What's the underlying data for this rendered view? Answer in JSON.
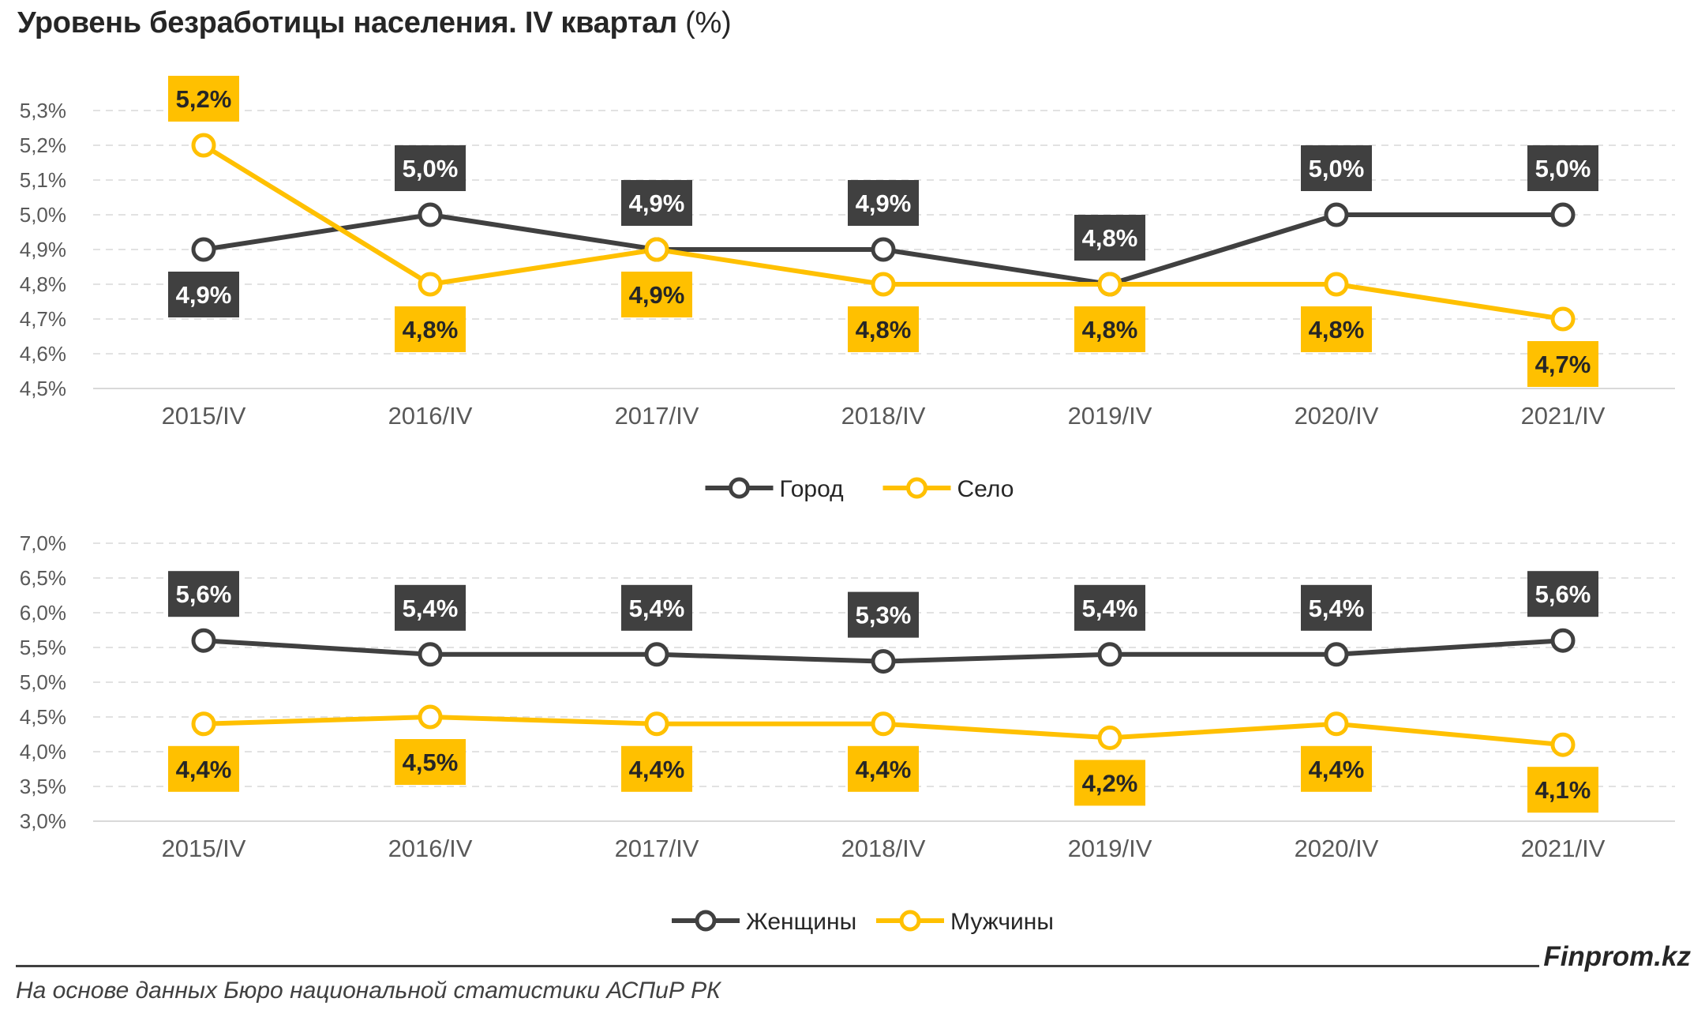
{
  "title": "Уровень безработицы населения. IV квартал",
  "title_unit": "(%)",
  "brand": "Finprom.kz",
  "source": "На основе данных Бюро национальной статистики АСПиР РК",
  "colors": {
    "dark": "#404040",
    "yellow": "#FFC000",
    "label_dark_bg": "#404040",
    "label_yellow_bg": "#FFC000",
    "grid": "#D9D9D9",
    "axis": "#D9D9D9"
  },
  "chart_data": [
    {
      "type": "line",
      "categories": [
        "2015/IV",
        "2016/IV",
        "2017/IV",
        "2018/IV",
        "2019/IV",
        "2020/IV",
        "2021/IV"
      ],
      "yticks": [
        "4,5%",
        "4,6%",
        "4,7%",
        "4,8%",
        "4,9%",
        "5,0%",
        "5,1%",
        "5,2%",
        "5,3%"
      ],
      "ylim": [
        4.5,
        5.3
      ],
      "grid": true,
      "legend_position": "bottom",
      "series": [
        {
          "name": "Город",
          "color": "#404040",
          "values": [
            4.9,
            5.0,
            4.9,
            4.9,
            4.8,
            5.0,
            5.0
          ],
          "labels": [
            "4,9%",
            "5,0%",
            "4,9%",
            "4,9%",
            "4,8%",
            "5,0%",
            "5,0%"
          ],
          "label_sides": [
            "below",
            "above",
            "above",
            "above",
            "above",
            "above",
            "above"
          ]
        },
        {
          "name": "Село",
          "color": "#FFC000",
          "values": [
            5.2,
            4.8,
            4.9,
            4.8,
            4.8,
            4.8,
            4.7
          ],
          "labels": [
            "5,2%",
            "4,8%",
            "4,9%",
            "4,8%",
            "4,8%",
            "4,8%",
            "4,7%"
          ],
          "label_sides": [
            "above",
            "below",
            "below",
            "below",
            "below",
            "below",
            "below"
          ]
        }
      ]
    },
    {
      "type": "line",
      "categories": [
        "2015/IV",
        "2016/IV",
        "2017/IV",
        "2018/IV",
        "2019/IV",
        "2020/IV",
        "2021/IV"
      ],
      "yticks": [
        "3,0%",
        "3,5%",
        "4,0%",
        "4,5%",
        "5,0%",
        "5,5%",
        "6,0%",
        "6,5%",
        "7,0%"
      ],
      "ylim": [
        3.0,
        7.0
      ],
      "grid": true,
      "legend_position": "bottom",
      "series": [
        {
          "name": "Женщины",
          "color": "#404040",
          "values": [
            5.6,
            5.4,
            5.4,
            5.3,
            5.4,
            5.4,
            5.6
          ],
          "labels": [
            "5,6%",
            "5,4%",
            "5,4%",
            "5,3%",
            "5,4%",
            "5,4%",
            "5,6%"
          ],
          "label_sides": [
            "above",
            "above",
            "above",
            "above",
            "above",
            "above",
            "above"
          ]
        },
        {
          "name": "Мужчины",
          "color": "#FFC000",
          "values": [
            4.4,
            4.5,
            4.4,
            4.4,
            4.2,
            4.4,
            4.1
          ],
          "labels": [
            "4,4%",
            "4,5%",
            "4,4%",
            "4,4%",
            "4,2%",
            "4,4%",
            "4,1%"
          ],
          "label_sides": [
            "below",
            "below",
            "below",
            "below",
            "below",
            "below",
            "below"
          ]
        }
      ]
    }
  ]
}
